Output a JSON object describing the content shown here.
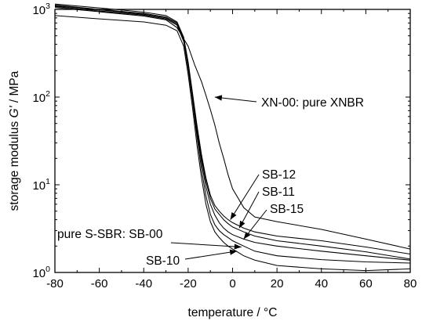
{
  "chart_data": {
    "type": "line",
    "title": "",
    "xlabel": "temperature / °C",
    "ylabel_prefix": "storage modulus ",
    "ylabel_italic": "G'",
    "ylabel_suffix": " / MPa",
    "xlim": [
      -80,
      80
    ],
    "ylim": [
      1,
      1000
    ],
    "yscale": "log",
    "grid": false,
    "legend": "none",
    "x_ticks": [
      -80,
      -60,
      -40,
      -20,
      0,
      20,
      40,
      60,
      80
    ],
    "x_tick_labels": [
      "-80",
      "-60",
      "-40",
      "-20",
      "0",
      "20",
      "40",
      "60",
      "80"
    ],
    "y_ticks": [
      1,
      10,
      100,
      1000
    ],
    "y_tick_labels": [
      {
        "base": "10",
        "exp": "0"
      },
      {
        "base": "10",
        "exp": "1"
      },
      {
        "base": "10",
        "exp": "2"
      },
      {
        "base": "10",
        "exp": "3"
      }
    ],
    "series": [
      {
        "name": "XN-00: pure XNBR",
        "x": [
          -80,
          -60,
          -40,
          -30,
          -25,
          -20,
          -17,
          -14,
          -12,
          -10,
          -8,
          -6,
          -4,
          -2,
          0,
          5,
          10,
          20,
          40,
          60,
          80
        ],
        "y": [
          1050,
          940,
          840,
          760,
          620,
          380,
          230,
          150,
          105,
          72,
          48,
          30,
          20,
          13,
          9,
          5.5,
          4.3,
          3.8,
          3.1,
          2.4,
          1.85
        ]
      },
      {
        "name": "SB-12",
        "x": [
          -80,
          -60,
          -40,
          -30,
          -25,
          -22,
          -20,
          -18,
          -16,
          -14,
          -12,
          -10,
          -8,
          -6,
          -4,
          -2,
          0,
          5,
          10,
          20,
          40,
          60,
          80
        ],
        "y": [
          1150,
          1040,
          930,
          850,
          720,
          480,
          250,
          110,
          47,
          22,
          12,
          7.6,
          5.8,
          5.0,
          4.4,
          4.0,
          3.7,
          3.2,
          2.9,
          2.6,
          2.3,
          1.95,
          1.62
        ]
      },
      {
        "name": "SB-11",
        "x": [
          -80,
          -60,
          -40,
          -30,
          -25,
          -22,
          -20,
          -18,
          -16,
          -14,
          -12,
          -10,
          -8,
          -6,
          -4,
          -2,
          0,
          5,
          10,
          20,
          40,
          60,
          80
        ],
        "y": [
          1120,
          1000,
          900,
          820,
          700,
          470,
          240,
          105,
          44,
          20,
          11,
          7.0,
          5.3,
          4.6,
          4.0,
          3.6,
          3.3,
          2.9,
          2.6,
          2.3,
          2.0,
          1.72,
          1.42
        ]
      },
      {
        "name": "SB-15",
        "x": [
          -80,
          -60,
          -40,
          -30,
          -25,
          -22,
          -20,
          -18,
          -16,
          -14,
          -12,
          -10,
          -8,
          -6,
          -4,
          -2,
          0,
          5,
          10,
          20,
          40,
          60,
          80
        ],
        "y": [
          1100,
          990,
          880,
          800,
          680,
          450,
          230,
          100,
          40,
          18,
          9.5,
          6.0,
          4.5,
          3.7,
          3.2,
          2.9,
          2.7,
          2.4,
          2.2,
          2.0,
          1.75,
          1.55,
          1.38
        ]
      },
      {
        "name": "pure S-SBR: SB-00",
        "x": [
          -80,
          -60,
          -40,
          -30,
          -25,
          -22,
          -20,
          -18,
          -16,
          -14,
          -12,
          -10,
          -8,
          -6,
          -4,
          -2,
          0,
          5,
          10,
          20,
          40,
          60,
          80
        ],
        "y": [
          1080,
          960,
          860,
          780,
          660,
          430,
          210,
          90,
          35,
          15,
          7.5,
          4.6,
          3.5,
          3.0,
          2.7,
          2.5,
          2.3,
          2.0,
          1.75,
          1.55,
          1.4,
          1.32,
          1.28
        ]
      },
      {
        "name": "SB-10",
        "x": [
          -80,
          -60,
          -40,
          -30,
          -25,
          -22,
          -20,
          -18,
          -16,
          -14,
          -12,
          -10,
          -8,
          -6,
          -4,
          -2,
          0,
          5,
          10,
          20,
          40,
          60,
          80
        ],
        "y": [
          850,
          780,
          720,
          660,
          570,
          380,
          180,
          75,
          28,
          12,
          6.0,
          3.8,
          2.9,
          2.5,
          2.2,
          2.0,
          1.85,
          1.55,
          1.38,
          1.2,
          1.1,
          1.05,
          1.1
        ]
      }
    ],
    "annotations": [
      {
        "text": "XN-00: pure XNBR",
        "arrow_to": [
          -8,
          100
        ]
      },
      {
        "text": "SB-12",
        "arrow_to": [
          -1,
          4.0
        ]
      },
      {
        "text": "SB-11",
        "arrow_to": [
          3,
          3.2
        ]
      },
      {
        "text": "SB-15",
        "arrow_to": [
          5,
          2.4
        ]
      },
      {
        "text": "pure S-SBR: SB-00",
        "arrow_to": [
          4,
          1.95
        ]
      },
      {
        "text": "SB-10",
        "arrow_to": [
          2,
          1.75
        ]
      }
    ]
  }
}
